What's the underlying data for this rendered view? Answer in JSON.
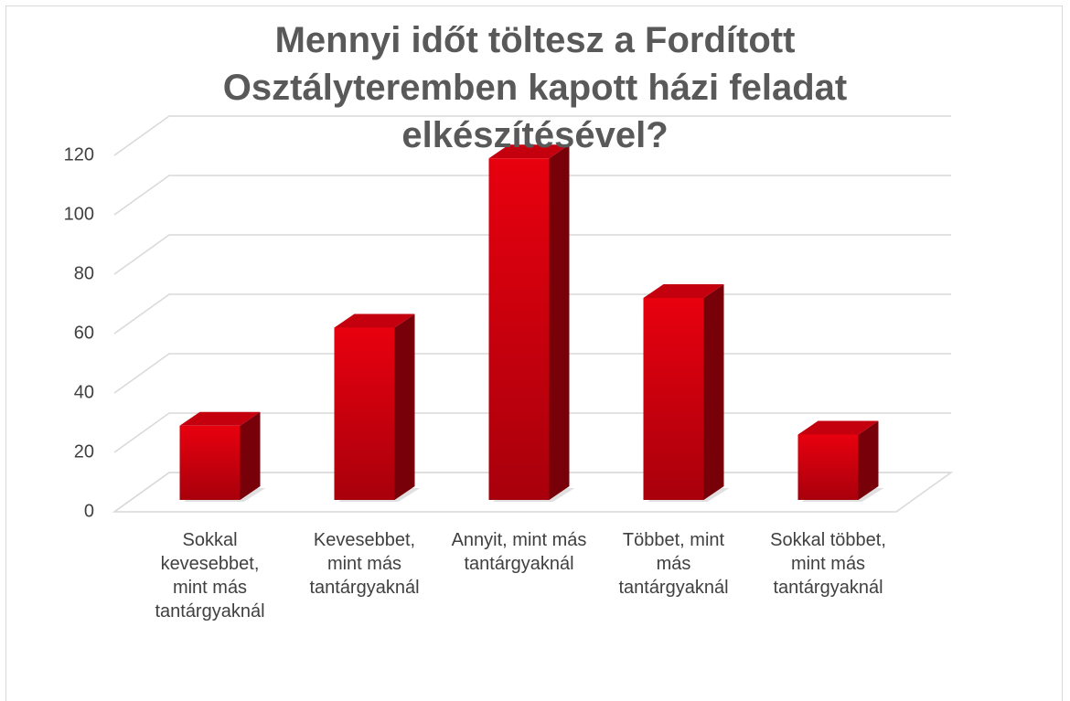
{
  "chart_data": {
    "type": "bar3d",
    "title": "Mennyi időt töltesz a Fordított Osztályteremben kapott házi feladat elkészítésével?",
    "categories": [
      "Sokkal kevesebbet, mint más tantárgyaknál",
      "Kevesebbet, mint más tantárgyaknál",
      "Annyit, mint más tantárgyaknál",
      "Többet, mint más tantárgyaknál",
      "Sokkal többet, mint más tantárgyaknál"
    ],
    "values": [
      25,
      58,
      115,
      68,
      22
    ],
    "color": "#d00010",
    "ylim": [
      0,
      120
    ],
    "yticks": [
      0,
      20,
      40,
      60,
      80,
      100,
      120
    ],
    "grid": true
  }
}
